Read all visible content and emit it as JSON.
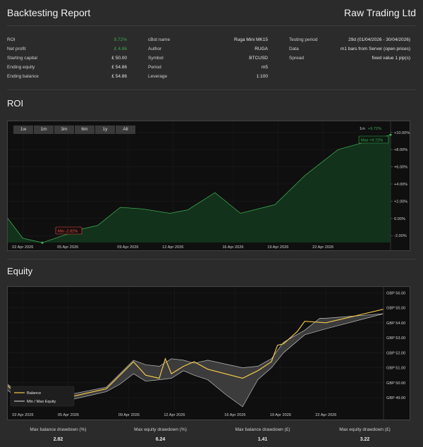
{
  "header": {
    "title": "Backtesting Report",
    "brand": "Raw Trading Ltd"
  },
  "summary": {
    "col1": [
      {
        "k": "ROI",
        "v": "9.72%",
        "green": true
      },
      {
        "k": "Net profit",
        "v": "£ 4.86",
        "green": true
      },
      {
        "k": "Starting capital",
        "v": "£ 50.00"
      },
      {
        "k": "Ending equity",
        "v": "£ 54.86"
      },
      {
        "k": "Ending balance",
        "v": "£ 54.86"
      }
    ],
    "col2": [
      {
        "k": "cBot name",
        "v": "Ruga Mini MK15"
      },
      {
        "k": "Author",
        "v": "RUGA"
      },
      {
        "k": "Symbol",
        "v": "BTCUSD"
      },
      {
        "k": "Period",
        "v": "m5"
      },
      {
        "k": "Leverage",
        "v": "1:100"
      }
    ],
    "col3": [
      {
        "k": "Testing period",
        "v": "29d (01/04/2026 - 30/04/2026)"
      },
      {
        "k": "Data",
        "v": "m1 bars from Server (open prices)"
      },
      {
        "k": "Spread",
        "v": "fixed value 1 pip(s)"
      }
    ]
  },
  "roi_section": {
    "title": "ROI",
    "ranges": [
      "1w",
      "1m",
      "3m",
      "6m",
      "1y",
      "All"
    ],
    "legend_range": "1m",
    "legend_value": "+9.72%",
    "max_label": "Max +9.72%",
    "min_label": "Min -2.82%"
  },
  "equity_section": {
    "title": "Equity",
    "legend_balance": "Balance",
    "legend_minmax": "Min / Max Equity"
  },
  "colors": {
    "green": "#3ea84f",
    "red": "#e0524a",
    "balance": "#f3c74a",
    "band": "#bdbdbd"
  },
  "chart_data": [
    {
      "type": "area",
      "title": "ROI",
      "x_ticks": [
        "02 Apr 2026",
        "05 Apr 2026",
        "09 Apr 2026",
        "12 Apr 2026",
        "16 Apr 2026",
        "19 Apr 2026",
        "22 Apr 2026"
      ],
      "y_ticks": [
        "+10.00%",
        "+8.00%",
        "+6.00%",
        "+4.00%",
        "+2.00%",
        "0.00%",
        "-2.00%"
      ],
      "ylim": [
        -2.8,
        10.8
      ],
      "series": [
        {
          "name": "ROI",
          "x": [
            1,
            2,
            3.3,
            6,
            7,
            8.5,
            10,
            11.8,
            13,
            14.8,
            16.5,
            18.8,
            20.8,
            23,
            26.5
          ],
          "y": [
            0,
            -2.3,
            -2.82,
            -1.2,
            -0.8,
            1.3,
            1.1,
            0.6,
            1.0,
            3.0,
            0.6,
            1.6,
            5.0,
            8.0,
            9.72
          ]
        }
      ]
    },
    {
      "type": "line",
      "title": "Equity",
      "x_ticks": [
        "02 Apr 2026",
        "05 Apr 2026",
        "09 Apr 2026",
        "12 Apr 2026",
        "16 Apr 2026",
        "19 Apr 2026",
        "22 Apr 2026"
      ],
      "y_ticks": [
        "GBP 56.00",
        "GBP 55.00",
        "GBP 54.00",
        "GBP 53.00",
        "GBP 52.00",
        "GBP 51.00",
        "GBP 50.00",
        "GBP 49.00"
      ],
      "ylim": [
        48.3,
        56.2
      ],
      "series": [
        {
          "name": "Balance",
          "x": [
            1,
            1.5,
            4,
            7.5,
            9.3,
            10.1,
            11,
            11.4,
            11.8,
            12.6,
            13.3,
            14.2,
            16.5,
            16.9,
            17.5,
            18.4,
            18.8,
            19.2,
            20.1,
            20.6,
            22,
            25.8
          ],
          "y": [
            49.8,
            49.3,
            48.8,
            49.6,
            51.4,
            50.5,
            50.3,
            51.6,
            50.6,
            51.1,
            51.4,
            50.9,
            50.3,
            50.5,
            50.8,
            51.4,
            52.5,
            52.6,
            53.4,
            54.1,
            54.0,
            54.9
          ]
        },
        {
          "name": "Min Equity",
          "x": [
            1,
            1.5,
            4,
            7.5,
            8.4,
            9.3,
            10.1,
            11,
            11.8,
            12.6,
            13.3,
            14.2,
            15.4,
            16.5,
            17.5,
            18.4,
            19.2,
            20.6,
            22,
            25.8
          ],
          "y": [
            49.5,
            49.1,
            48.6,
            49.4,
            49.9,
            50.6,
            50.1,
            50.2,
            50.3,
            50.8,
            50.5,
            50.2,
            49.2,
            48.4,
            50.2,
            51.0,
            52.0,
            53.2,
            53.6,
            54.6
          ]
        },
        {
          "name": "Max Equity",
          "x": [
            1,
            1.5,
            4,
            7.5,
            9.3,
            10.1,
            11,
            11.8,
            12.6,
            13.3,
            14.2,
            16.5,
            17.5,
            18.4,
            19.2,
            20.6,
            21.6,
            22,
            25.8
          ],
          "y": [
            49.9,
            49.5,
            49.0,
            49.7,
            51.5,
            51.2,
            51.1,
            51.6,
            51.5,
            51.3,
            51.5,
            51.0,
            51.1,
            51.6,
            52.7,
            53.5,
            54.3,
            54.3,
            54.6
          ]
        }
      ]
    }
  ],
  "stats": [
    {
      "label": "Max balance drawdown (%)",
      "value": "2.82"
    },
    {
      "label": "Max equity drawdown (%)",
      "value": "6.24"
    },
    {
      "label": "Max balance drawdown (£)",
      "value": "1.41"
    },
    {
      "label": "Max equity drawdown (£)",
      "value": "3.22"
    }
  ]
}
